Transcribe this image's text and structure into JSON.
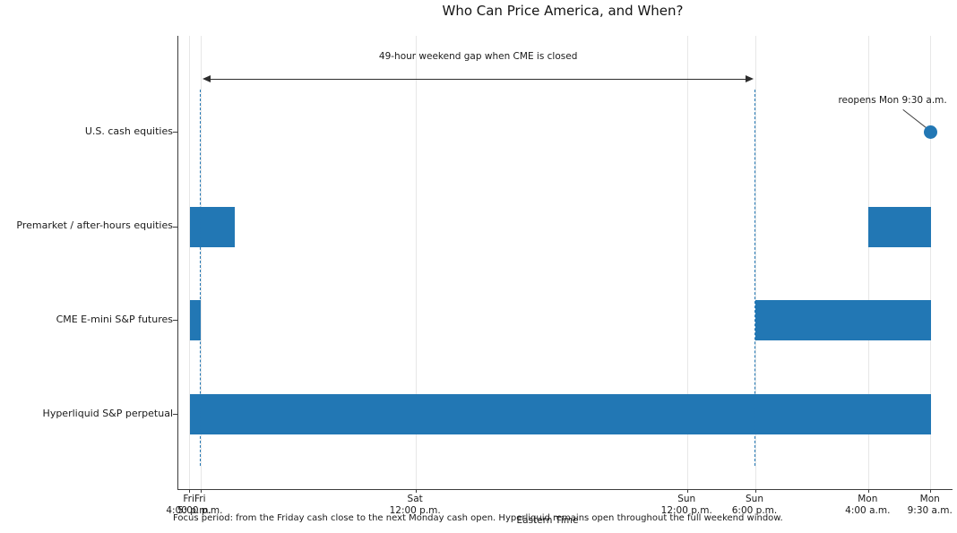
{
  "chart_data": {
    "type": "bar",
    "variant": "horizontal-timeline-gantt",
    "title": "Who Can Price America, and When?",
    "xlabel": "Eastern Time",
    "caption": "Focus period: from the Friday cash close to the next Monday cash open. Hyperliquid remains open throughout the full weekend window.",
    "x_unit": "hours after Fri 4:00 p.m. ET",
    "xlim": [
      -1,
      67.5
    ],
    "grid": "vertical-gridlines-on",
    "legend": "none",
    "xticks": [
      {
        "hour": 0,
        "day": "Fri",
        "time": "4:00 p.m."
      },
      {
        "hour": 1,
        "day": "Fri",
        "time": "5:00 p.m."
      },
      {
        "hour": 20,
        "day": "Sat",
        "time": "12:00 p.m."
      },
      {
        "hour": 44,
        "day": "Sun",
        "time": "12:00 p.m."
      },
      {
        "hour": 50,
        "day": "Sun",
        "time": "6:00 p.m."
      },
      {
        "hour": 60,
        "day": "Mon",
        "time": "4:00 a.m."
      },
      {
        "hour": 65.5,
        "day": "Mon",
        "time": "9:30 a.m."
      }
    ],
    "row_centers_frac": [
      0.213,
      0.421,
      0.628,
      0.835
    ],
    "rows": [
      {
        "id": "us-cash-equities",
        "label": "U.S. cash equities",
        "bars": [],
        "point": 65.5
      },
      {
        "id": "premarket-afterhours",
        "label": "Premarket / after-hours equities",
        "bars": [
          [
            0,
            4
          ],
          [
            60,
            65.5
          ]
        ],
        "point": null
      },
      {
        "id": "cme-emini-futures",
        "label": "CME E-mini S&P futures",
        "bars": [
          [
            0,
            1
          ],
          [
            50,
            65.5
          ]
        ],
        "point": null
      },
      {
        "id": "hyperliquid-perp",
        "label": "Hyperliquid S&P perpetual",
        "bars": [
          [
            0,
            65.5
          ]
        ],
        "point": null
      }
    ],
    "dashed_lines_hours": [
      1,
      50
    ],
    "gap_annotation": {
      "text": "49-hour weekend gap when CME is closed",
      "from_hour": 1,
      "to_hour": 50
    },
    "reopen_annotation": {
      "text": "reopens Mon 9:30 a.m.",
      "at_hour": 65.5,
      "row_index": 0
    },
    "colors": {
      "bar": "#2277b4",
      "dashed": "#2277b4",
      "arrow": "#2d2d2d",
      "grid": "#e7e7e7",
      "text": "#1a1a1a"
    }
  }
}
